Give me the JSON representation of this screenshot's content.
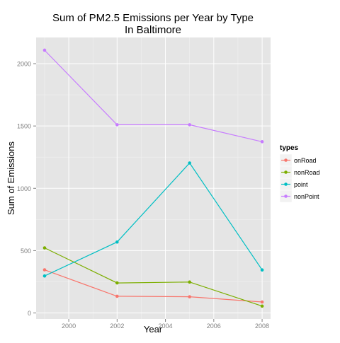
{
  "chart_data": {
    "type": "line",
    "title_line1": "Sum of PM2.5 Emissions per Year by Type",
    "title_line2": "In Baltimore",
    "xlabel": "Year",
    "ylabel": "Sum of Emissions",
    "x_ticks": [
      2000,
      2002,
      2004,
      2006,
      2008
    ],
    "y_ticks": [
      0,
      500,
      1000,
      1500,
      2000
    ],
    "xlim": [
      1998.65,
      2008.35
    ],
    "ylim": [
      -48,
      2210
    ],
    "grid": true,
    "legend": {
      "title": "types",
      "placement": "right"
    },
    "x": [
      1999,
      2002,
      2005,
      2008
    ],
    "series": [
      {
        "name": "onRoad",
        "color": "#F8766D",
        "values": [
          346,
          134,
          130,
          88
        ]
      },
      {
        "name": "nonRoad",
        "color": "#7CAE00",
        "values": [
          522,
          241,
          248,
          55
        ]
      },
      {
        "name": "point",
        "color": "#00BFC4",
        "values": [
          297,
          569,
          1203,
          345
        ]
      },
      {
        "name": "nonPoint",
        "color": "#C77CFF",
        "values": [
          2108,
          1510,
          1510,
          1374
        ]
      }
    ]
  }
}
